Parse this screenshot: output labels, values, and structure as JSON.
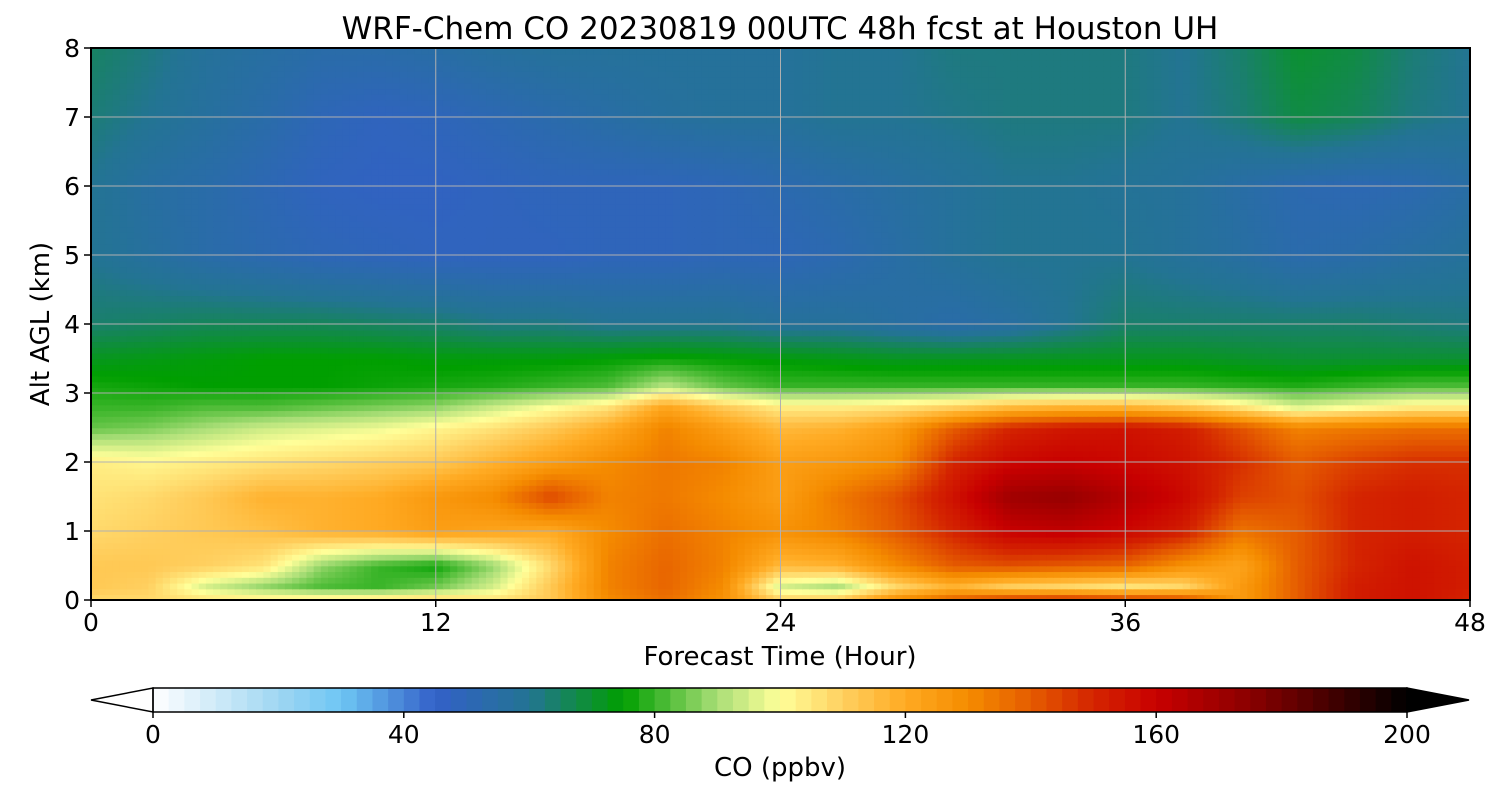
{
  "chart_data": {
    "type": "heatmap",
    "title": "WRF-Chem CO  20230819 00UTC 48h fcst at Houston UH",
    "xlabel": "Forecast Time (Hour)",
    "ylabel": "Alt AGL (km)",
    "xlim": [
      0,
      48
    ],
    "ylim": [
      0,
      8
    ],
    "x_ticks": [
      "0",
      "12",
      "24",
      "36",
      "48"
    ],
    "y_ticks": [
      "0",
      "1",
      "2",
      "3",
      "4",
      "5",
      "6",
      "7",
      "8"
    ],
    "grid": true,
    "colorbar": {
      "label": "CO  (ppbv)",
      "range": [
        0,
        200
      ],
      "ticks": [
        "0",
        "40",
        "80",
        "120",
        "160",
        "200"
      ],
      "extend": "both",
      "position": "bottom",
      "color_stops": [
        {
          "value": 0,
          "color": "#ffffff"
        },
        {
          "value": 20,
          "color": "#9fd6f2"
        },
        {
          "value": 30,
          "color": "#6ec6f4"
        },
        {
          "value": 45,
          "color": "#3360c8"
        },
        {
          "value": 60,
          "color": "#237493"
        },
        {
          "value": 75,
          "color": "#009f00"
        },
        {
          "value": 90,
          "color": "#a9de77"
        },
        {
          "value": 100,
          "color": "#ffff99"
        },
        {
          "value": 110,
          "color": "#ffd060"
        },
        {
          "value": 120,
          "color": "#ffaa22"
        },
        {
          "value": 130,
          "color": "#f58c00"
        },
        {
          "value": 140,
          "color": "#e55c00"
        },
        {
          "value": 150,
          "color": "#d42400"
        },
        {
          "value": 160,
          "color": "#c80000"
        },
        {
          "value": 175,
          "color": "#8a0000"
        },
        {
          "value": 200,
          "color": "#000000"
        }
      ]
    },
    "x_hours": [
      0,
      2,
      4,
      6,
      8,
      10,
      12,
      14,
      16,
      18,
      20,
      22,
      24,
      26,
      28,
      30,
      32,
      34,
      36,
      38,
      40,
      42,
      44,
      46,
      48
    ],
    "y_km": [
      0,
      0.2,
      0.5,
      1,
      1.5,
      2,
      2.5,
      2.8,
      3.1,
      3.5,
      4,
      5,
      6,
      7,
      8
    ],
    "values": [
      [
        108,
        108,
        106,
        105,
        106,
        108,
        110,
        106,
        112,
        130,
        136,
        128,
        110,
        112,
        130,
        140,
        148,
        150,
        148,
        145,
        125,
        140,
        152,
        155,
        150
      ],
      [
        112,
        110,
        95,
        88,
        82,
        80,
        85,
        95,
        112,
        132,
        138,
        130,
        95,
        90,
        108,
        118,
        110,
        108,
        105,
        108,
        125,
        140,
        152,
        155,
        152
      ],
      [
        112,
        112,
        110,
        106,
        88,
        80,
        76,
        88,
        108,
        132,
        138,
        132,
        116,
        118,
        130,
        140,
        142,
        140,
        138,
        128,
        122,
        140,
        150,
        155,
        152
      ],
      [
        108,
        110,
        112,
        114,
        118,
        120,
        124,
        122,
        120,
        130,
        136,
        132,
        128,
        132,
        140,
        150,
        160,
        162,
        158,
        152,
        135,
        140,
        150,
        152,
        150
      ],
      [
        106,
        108,
        112,
        118,
        118,
        120,
        126,
        130,
        144,
        132,
        134,
        130,
        124,
        134,
        142,
        155,
        170,
        172,
        165,
        158,
        145,
        142,
        150,
        152,
        150
      ],
      [
        104,
        102,
        104,
        106,
        108,
        110,
        112,
        118,
        124,
        130,
        134,
        132,
        124,
        126,
        130,
        150,
        158,
        160,
        158,
        155,
        148,
        140,
        145,
        148,
        148
      ],
      [
        84,
        86,
        90,
        94,
        96,
        98,
        102,
        106,
        112,
        120,
        132,
        124,
        116,
        118,
        124,
        140,
        150,
        154,
        155,
        152,
        142,
        132,
        134,
        136,
        136
      ],
      [
        80,
        80,
        82,
        82,
        84,
        86,
        88,
        94,
        100,
        106,
        122,
        112,
        104,
        104,
        106,
        110,
        116,
        118,
        118,
        114,
        106,
        96,
        100,
        104,
        104
      ],
      [
        77,
        76,
        75,
        75,
        75,
        76,
        77,
        78,
        80,
        82,
        92,
        84,
        80,
        80,
        80,
        80,
        80,
        80,
        80,
        80,
        79,
        78,
        80,
        82,
        82
      ],
      [
        72,
        73,
        74,
        75,
        75,
        75,
        74,
        74,
        74,
        75,
        76,
        75,
        74,
        73,
        72,
        72,
        72,
        72,
        72,
        72,
        71,
        70,
        70,
        70,
        70
      ],
      [
        64,
        65,
        66,
        66,
        66,
        65,
        64,
        62,
        62,
        60,
        60,
        60,
        58,
        58,
        56,
        54,
        56,
        60,
        64,
        64,
        64,
        64,
        64,
        63,
        62
      ],
      [
        60,
        57,
        54,
        52,
        50,
        49,
        48,
        48,
        48,
        49,
        49,
        50,
        50,
        52,
        55,
        58,
        60,
        60,
        60,
        58,
        56,
        53,
        54,
        56,
        58
      ],
      [
        60,
        56,
        54,
        51,
        48,
        47,
        47,
        48,
        49,
        49,
        49,
        50,
        52,
        54,
        56,
        58,
        60,
        60,
        59,
        58,
        55,
        52,
        51,
        52,
        55
      ],
      [
        63,
        60,
        57,
        54,
        50,
        48,
        49,
        51,
        53,
        55,
        57,
        58,
        58,
        60,
        60,
        61,
        62,
        62,
        62,
        60,
        63,
        68,
        66,
        62,
        60
      ],
      [
        65,
        62,
        58,
        56,
        54,
        54,
        55,
        57,
        58,
        58,
        58,
        58,
        58,
        60,
        60,
        62,
        62,
        62,
        62,
        60,
        64,
        70,
        68,
        63,
        60
      ]
    ]
  }
}
